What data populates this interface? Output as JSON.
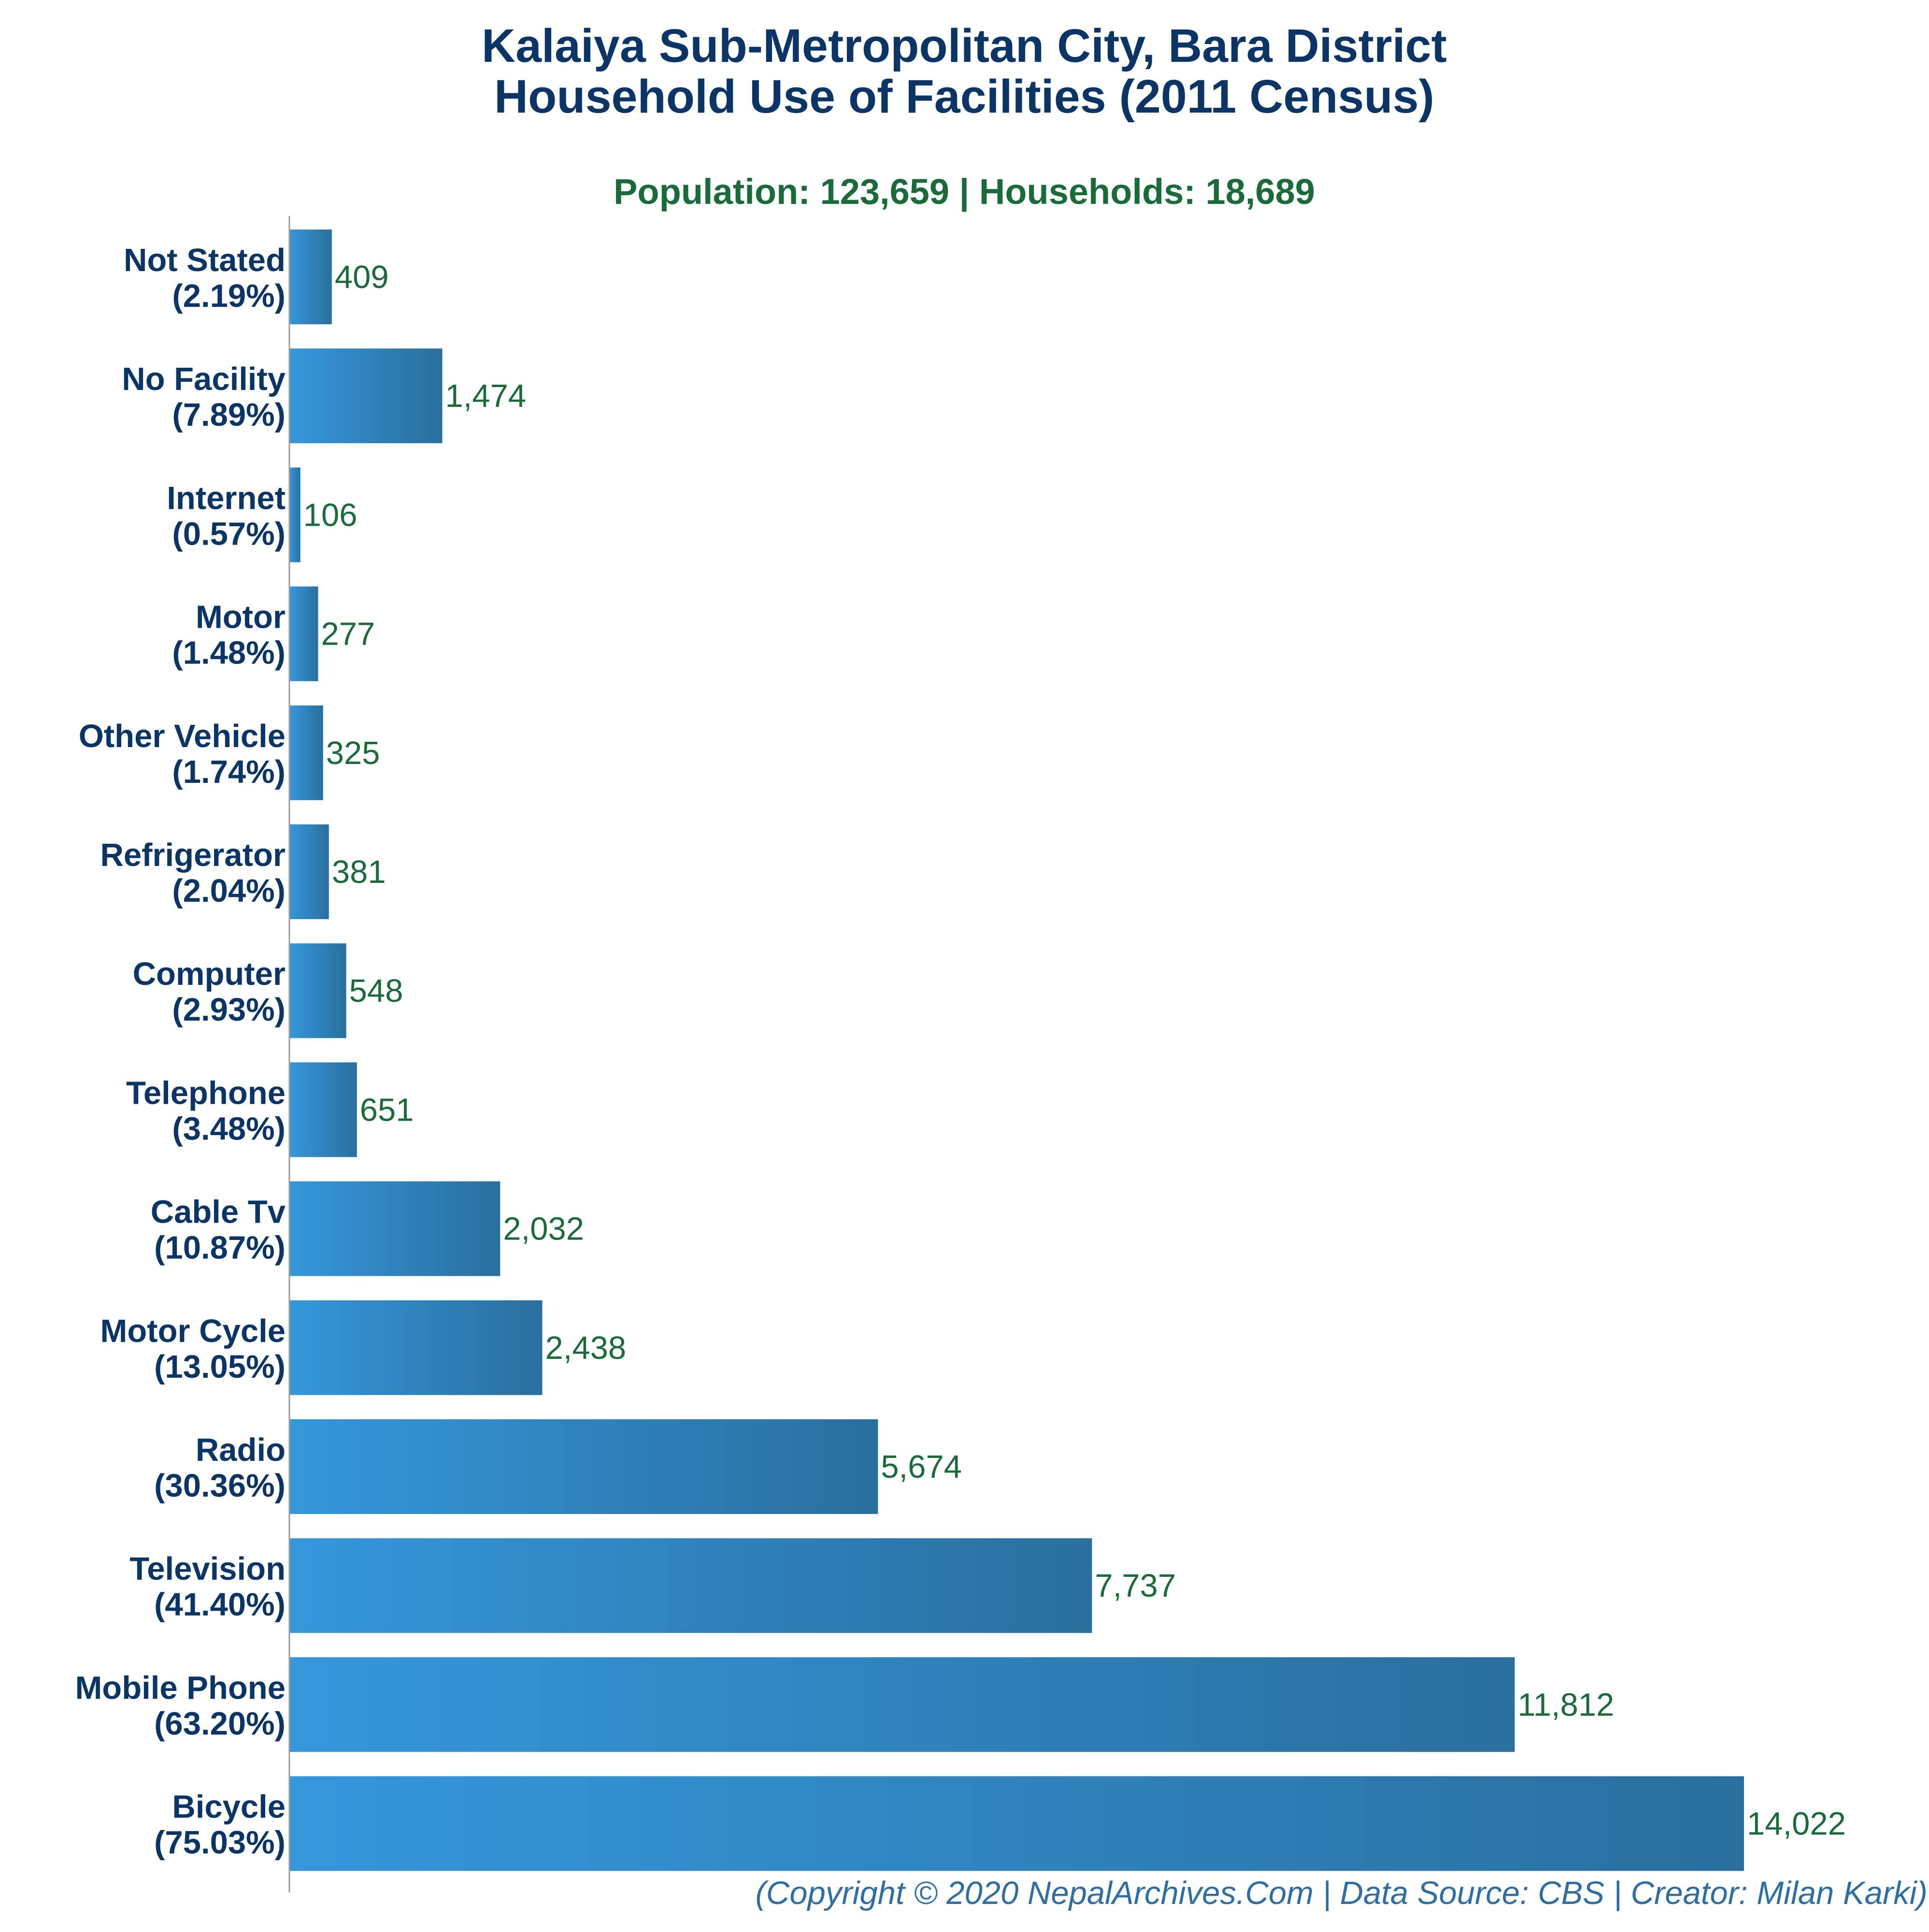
{
  "colors": {
    "title": "#0b3566",
    "subtitle": "#1a6b3a",
    "category": "#0b3566",
    "value": "#1a6b3a",
    "bar_start": "#3597dc",
    "bar_end": "#2a6f9e",
    "axis": "#999999",
    "footer": "#2f6ea5"
  },
  "chart_data": {
    "type": "bar",
    "orientation": "horizontal",
    "title_lines": [
      "Kalaiya Sub-Metropolitan City, Bara District",
      "Household Use of Facilities (2011 Census)"
    ],
    "subtitle": "Population: 123,659 | Households: 18,689",
    "categories": [
      {
        "name": "Not Stated",
        "pct": "(2.19%)"
      },
      {
        "name": "No Facility",
        "pct": "(7.89%)"
      },
      {
        "name": "Internet",
        "pct": "(0.57%)"
      },
      {
        "name": "Motor",
        "pct": "(1.48%)"
      },
      {
        "name": "Other Vehicle",
        "pct": "(1.74%)"
      },
      {
        "name": "Refrigerator",
        "pct": "(2.04%)"
      },
      {
        "name": "Computer",
        "pct": "(2.93%)"
      },
      {
        "name": "Telephone",
        "pct": "(3.48%)"
      },
      {
        "name": "Cable Tv",
        "pct": "(10.87%)"
      },
      {
        "name": "Motor Cycle",
        "pct": "(13.05%)"
      },
      {
        "name": "Radio",
        "pct": "(30.36%)"
      },
      {
        "name": "Television",
        "pct": "(41.40%)"
      },
      {
        "name": "Mobile Phone",
        "pct": "(63.20%)"
      },
      {
        "name": "Bicycle",
        "pct": "(75.03%)"
      }
    ],
    "values": [
      409,
      1474,
      106,
      277,
      325,
      381,
      548,
      651,
      2032,
      2438,
      5674,
      7737,
      11812,
      14022
    ],
    "value_labels": [
      "409",
      "1,474",
      "106",
      "277",
      "325",
      "381",
      "548",
      "651",
      "2,032",
      "2,438",
      "5,674",
      "7,737",
      "11,812",
      "14,022"
    ],
    "xlim": [
      0,
      15000
    ],
    "grid": false,
    "legend": "none"
  },
  "footer": "(Copyright © 2020 NepalArchives.Com | Data Source: CBS | Creator: Milan Karki)"
}
